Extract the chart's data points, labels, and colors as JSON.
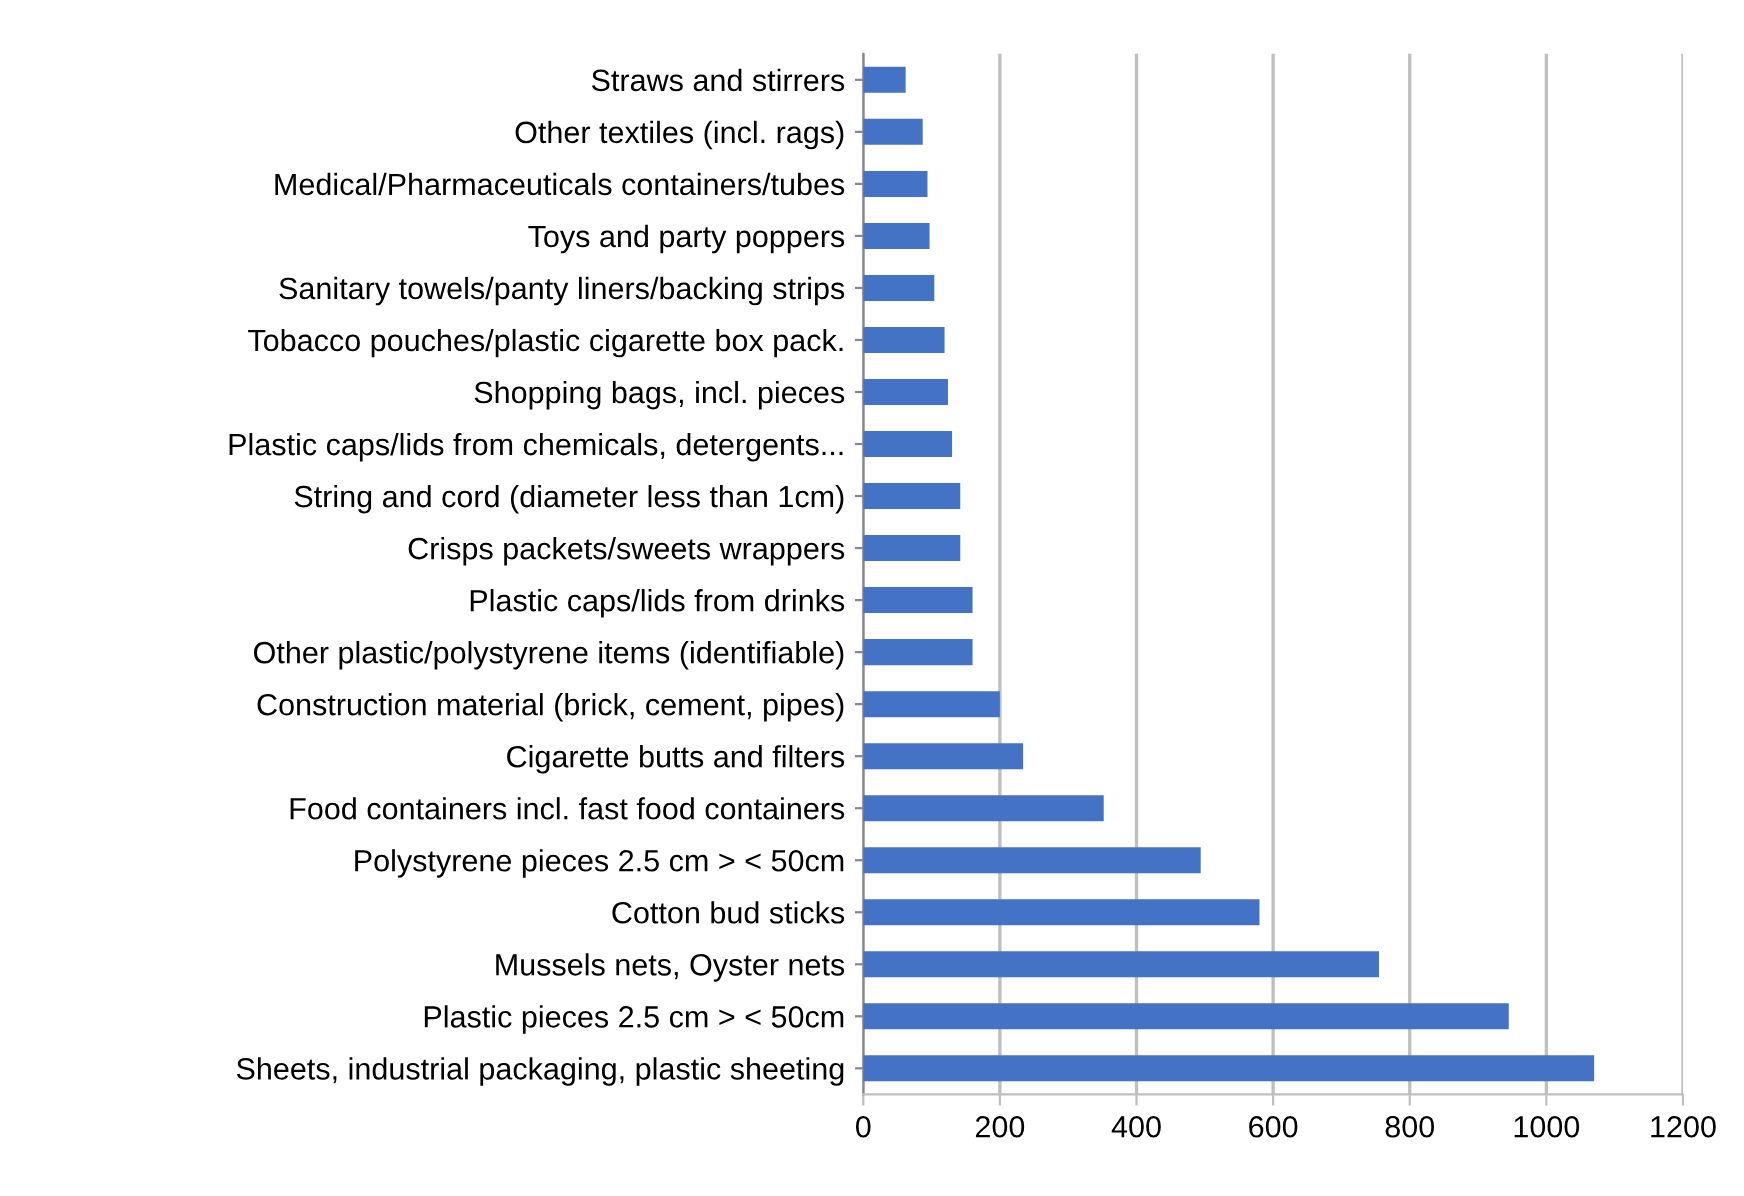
{
  "chart_data": {
    "type": "bar",
    "orientation": "horizontal",
    "color": "#4472c4",
    "categories": [
      "Straws and stirrers",
      "Other textiles (incl. rags)",
      "Medical/Pharmaceuticals containers/tubes",
      "Toys and party poppers",
      "Sanitary towels/panty liners/backing strips",
      "Tobacco pouches/plastic cigarette box pack.",
      "Shopping bags, incl. pieces",
      "Plastic caps/lids from chemicals, detergents...",
      "String and cord (diameter less than 1cm)",
      "Crisps packets/sweets wrappers",
      "Plastic caps/lids from drinks",
      "Other plastic/polystyrene items (identifiable)",
      "Construction material (brick, cement, pipes)",
      "Cigarette butts and filters",
      "Food containers incl. fast food containers",
      "Polystyrene pieces 2.5 cm > < 50cm",
      "Cotton bud sticks",
      "Mussels nets, Oyster nets",
      "Plastic pieces 2.5 cm > < 50cm",
      "Sheets, industrial packaging, plastic sheeting"
    ],
    "values": [
      62,
      87,
      94,
      97,
      104,
      119,
      124,
      130,
      142,
      142,
      160,
      160,
      200,
      234,
      352,
      494,
      580,
      755,
      945,
      1070
    ],
    "xlim": [
      0,
      1200
    ],
    "xticks": [
      0,
      200,
      400,
      600,
      800,
      1000,
      1200
    ],
    "grid": "x"
  }
}
